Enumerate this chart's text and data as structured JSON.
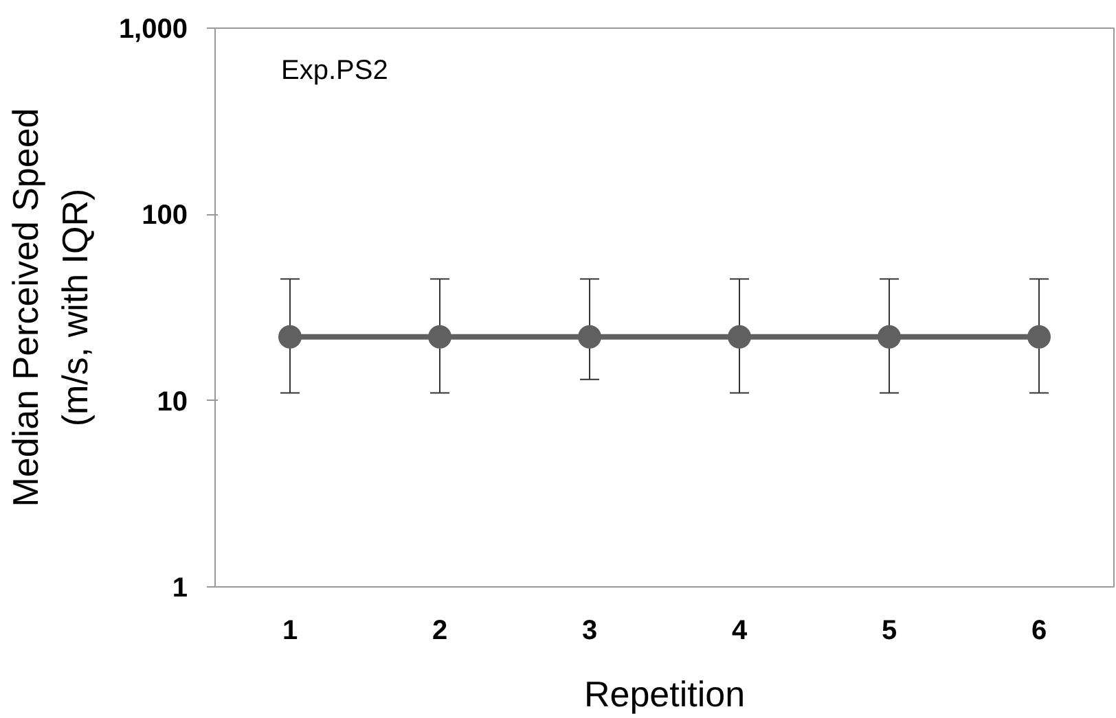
{
  "chart_data": {
    "type": "line",
    "xlabel": "Repetition",
    "ylabel": "Median Perceived Speed\n(m/s, with IQR)",
    "annotations": [
      "Exp.PS2"
    ],
    "categories": [
      "1",
      "2",
      "3",
      "4",
      "5",
      "6"
    ],
    "series": [
      {
        "color": "#606060",
        "values": [
          22,
          22,
          22,
          22,
          22,
          22
        ],
        "errors": [
          [
            11,
            45
          ],
          [
            11,
            45
          ],
          [
            13,
            45
          ],
          [
            11,
            45
          ],
          [
            11,
            45
          ],
          [
            11,
            45
          ]
        ]
      }
    ],
    "log": "y",
    "ylim": [
      1,
      1000
    ],
    "yticks": [
      1,
      10,
      100,
      {
        "value": 1000,
        "label": "1,000"
      }
    ],
    "marker": "circle",
    "line_style": "solid"
  }
}
